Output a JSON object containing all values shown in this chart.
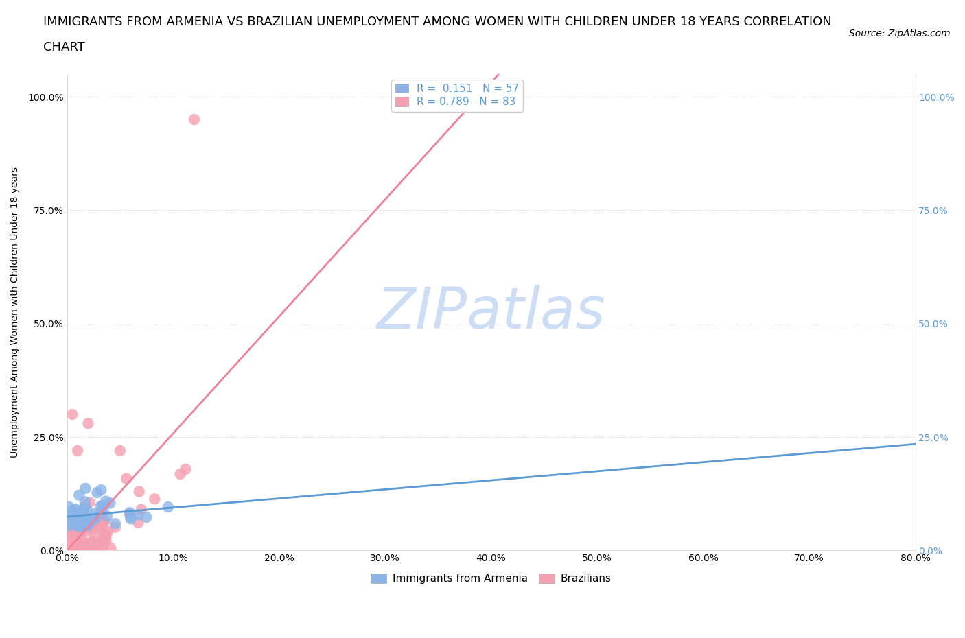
{
  "title_line1": "IMMIGRANTS FROM ARMENIA VS BRAZILIAN UNEMPLOYMENT AMONG WOMEN WITH CHILDREN UNDER 18 YEARS CORRELATION",
  "title_line2": "CHART",
  "source_text": "Source: ZipAtlas.com",
  "ylabel": "Unemployment Among Women with Children Under 18 years",
  "xlim": [
    0.0,
    0.8
  ],
  "ylim": [
    0.0,
    1.05
  ],
  "xtick_labels": [
    "0.0%",
    "10.0%",
    "20.0%",
    "30.0%",
    "40.0%",
    "50.0%",
    "60.0%",
    "70.0%",
    "80.0%"
  ],
  "xtick_values": [
    0.0,
    0.1,
    0.2,
    0.3,
    0.4,
    0.5,
    0.6,
    0.7,
    0.8
  ],
  "ytick_labels": [
    "0.0%",
    "25.0%",
    "50.0%",
    "75.0%",
    "100.0%"
  ],
  "ytick_values": [
    0.0,
    0.25,
    0.5,
    0.75,
    1.0
  ],
  "color_armenia": "#8ab4e8",
  "color_brazil": "#f4a0b0",
  "color_armenia_line": "#5b9bd5",
  "color_brazil_line": "#f08098",
  "watermark_color": "#ccddf5",
  "R_armenia": 0.151,
  "N_armenia": 57,
  "R_brazil": 0.789,
  "N_brazil": 83,
  "legend_armenia": "Immigrants from Armenia",
  "legend_brazil": "Brazilians",
  "title_fontsize": 13,
  "source_fontsize": 10,
  "axis_label_fontsize": 10,
  "tick_fontsize": 10,
  "legend_fontsize": 11,
  "watermark_fontsize": 60,
  "right_tick_color": "#5b9bd5"
}
